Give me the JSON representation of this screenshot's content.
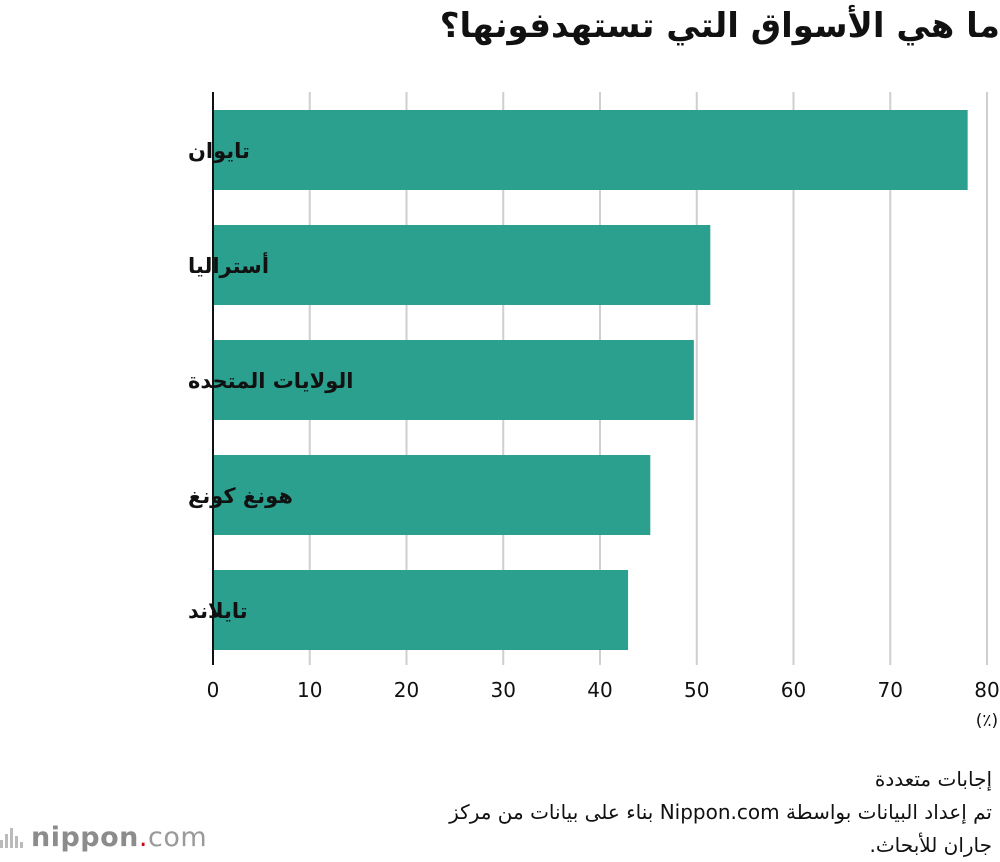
{
  "chart_data": {
    "type": "bar",
    "orientation": "horizontal",
    "title": "ما هي الأسواق التي تستهدفونها؟",
    "categories": [
      "تايوان",
      "أستراليا",
      "الولايات المتحدة",
      "هونغ كونغ",
      "تايلاند"
    ],
    "values": [
      78,
      51.4,
      49.7,
      45.2,
      42.9
    ],
    "xlim": [
      0,
      80
    ],
    "xticks": [
      "0",
      "10",
      "20",
      "30",
      "40",
      "50",
      "60",
      "70",
      "80"
    ],
    "unit_label": "(٪)",
    "grid": true,
    "bar_color": "#2ba08f"
  },
  "notes": {
    "line1": "إجابات متعددة",
    "line2": "تم إعداد البيانات بواسطة Nippon.com بناء على بيانات من مركز",
    "line3": "جاران للأبحاث."
  },
  "logo": {
    "part1": "nippon",
    "dot": ".",
    "part2": "com"
  }
}
